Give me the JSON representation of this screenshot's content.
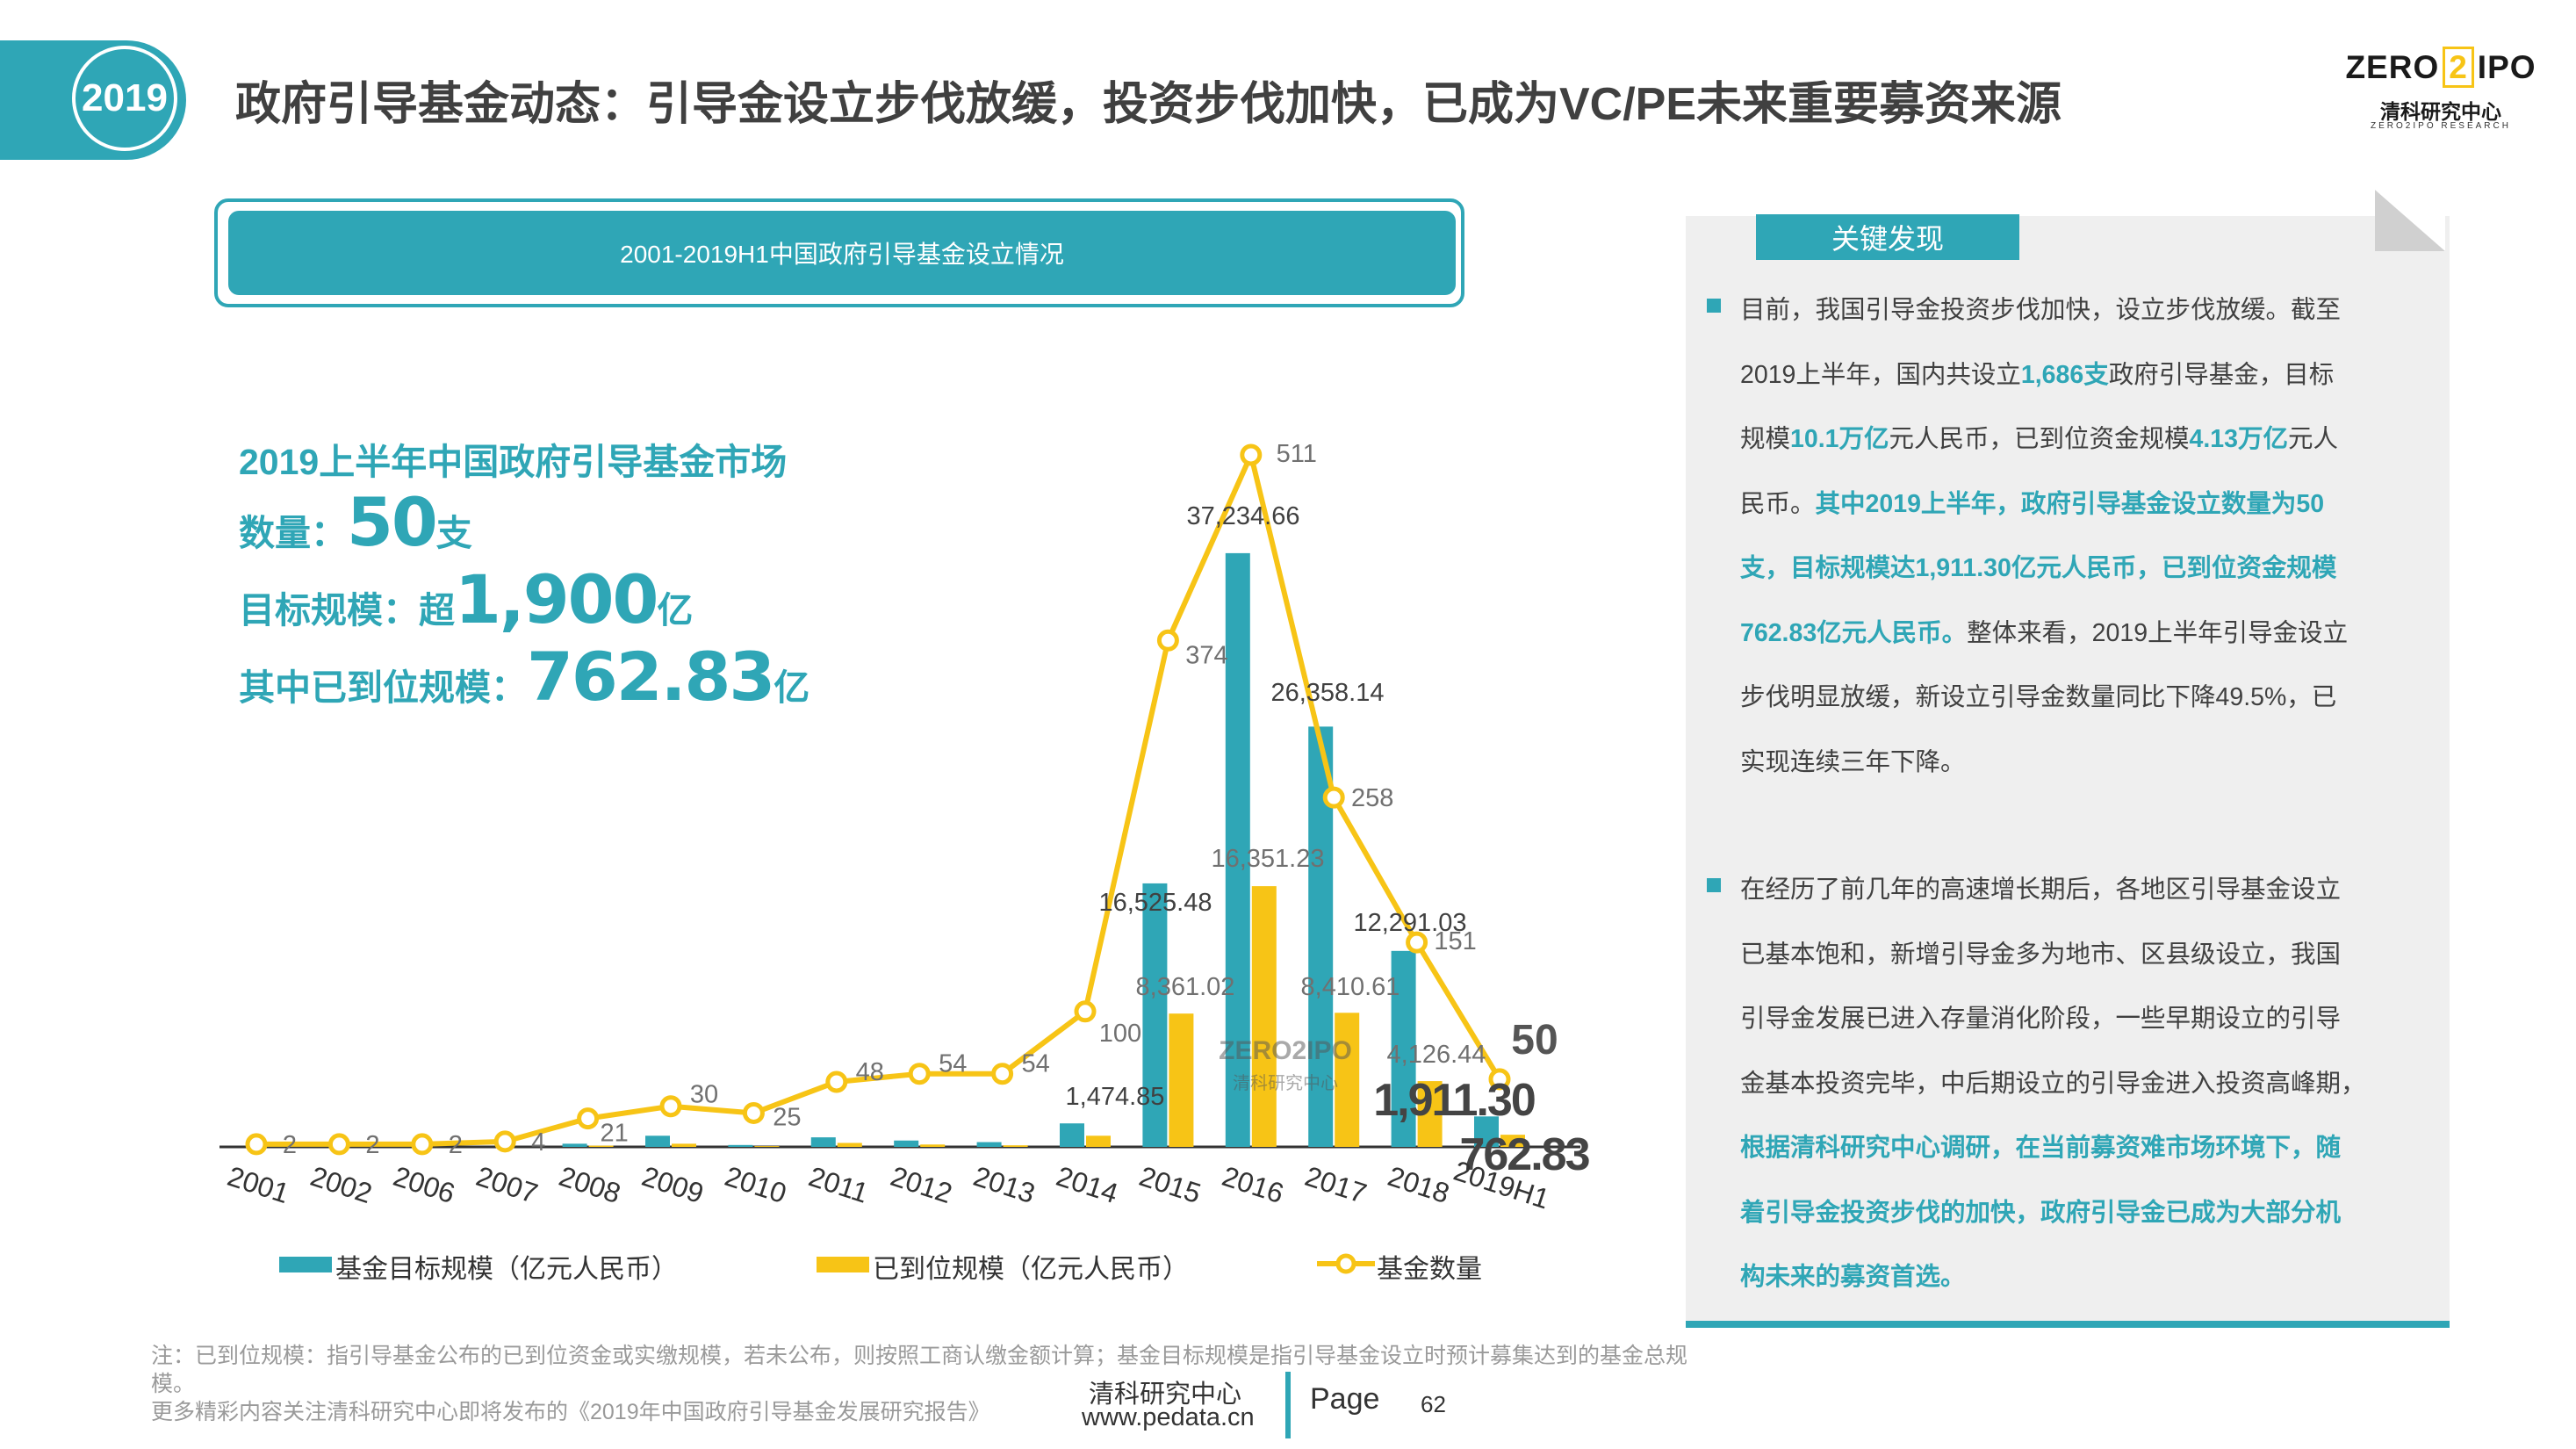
{
  "header": {
    "year": "2019",
    "title": "政府引导基金动态：引导金设立步伐放缓，投资步伐加快，已成为VC/PE未来重要募资来源",
    "logo_top_left": "ZERO",
    "logo_top_mid": "2",
    "logo_top_right": "IPO",
    "logo_cn": "清科研究中心",
    "logo_en": "ZERO2IPO RESEARCH"
  },
  "chart_box_title": "2001-2019H1中国政府引导基金设立情况",
  "summary": {
    "heading": "2019上半年中国政府引导基金市场",
    "count_label": "数量：",
    "count_value": "50",
    "count_unit": "支",
    "target_label": "目标规模：超",
    "target_value": "1,900",
    "target_unit": "亿",
    "paid_label": "其中已到位规模：",
    "paid_value": "762.83",
    "paid_unit": "亿"
  },
  "chart_data": {
    "type": "bar",
    "categories": [
      "2001",
      "2002",
      "2006",
      "2007",
      "2008",
      "2009",
      "2010",
      "2011",
      "2012",
      "2013",
      "2014",
      "2015",
      "2016",
      "2017",
      "2018",
      "2019H1"
    ],
    "series": [
      {
        "name": "基金目标规模（亿元人民币）",
        "type": "bar",
        "color": "#2fa6b6",
        "values": [
          0,
          0,
          0,
          0,
          200,
          700,
          120,
          600,
          400,
          300,
          1474.85,
          16525.48,
          37234.66,
          26358.14,
          12291.03,
          1911.3
        ],
        "labels": [
          "",
          "",
          "",
          "",
          "",
          "",
          "",
          "",
          "",
          "",
          "1,474.85",
          "16,525.48",
          "37,234.66",
          "26,358.14",
          "12,291.03",
          "1,911.30"
        ]
      },
      {
        "name": "已到位规模（亿元人民币）",
        "type": "bar",
        "color": "#f7c416",
        "values": [
          0,
          0,
          0,
          0,
          80,
          200,
          50,
          250,
          150,
          100,
          700,
          8361.02,
          16351.23,
          8410.61,
          4126.44,
          762.83
        ],
        "labels": [
          "",
          "",
          "",
          "",
          "",
          "",
          "",
          "",
          "",
          "",
          "",
          "8,361.02",
          "16,351.23",
          "8,410.61",
          "4,126.44",
          "762.83"
        ]
      },
      {
        "name": "基金数量",
        "type": "line",
        "color": "#f7c416",
        "axis": "secondary",
        "values": [
          2,
          2,
          2,
          4,
          21,
          30,
          25,
          48,
          54,
          54,
          100,
          374,
          511,
          258,
          151,
          50
        ]
      }
    ],
    "ylim": [
      0,
      38000
    ],
    "y2lim": [
      0,
      511
    ],
    "grid": false,
    "legend": "bottom"
  },
  "panel": {
    "title": "关键发现",
    "p1": [
      [
        {
          "t": "目前，我国引导金投资步伐加快，设立步伐放缓。截至"
        }
      ],
      [
        {
          "t": "2019上半年，国内共设立"
        },
        {
          "t": "1,686支",
          "h": 1
        },
        {
          "t": "政府引导基金，目标"
        }
      ],
      [
        {
          "t": "规模"
        },
        {
          "t": "10.1万亿",
          "h": 1
        },
        {
          "t": "元人民币，已到位资金规模"
        },
        {
          "t": "4.13万亿",
          "h": 1
        },
        {
          "t": "元人"
        }
      ],
      [
        {
          "t": "民币。"
        },
        {
          "t": "其中2019上半年，政府引导基金设立数量为50",
          "h": 1
        }
      ],
      [
        {
          "t": "支，目标规模达1,911.30亿元人民币，已到位资金规模",
          "h": 1
        }
      ],
      [
        {
          "t": "762.83亿元人民币。",
          "h": 1
        },
        {
          "t": "整体来看，2019上半年引导金设立"
        }
      ],
      [
        {
          "t": "步伐明显放缓，新设立引导金数量同比下降49.5%，已"
        }
      ],
      [
        {
          "t": "实现连续三年下降。"
        }
      ]
    ],
    "p2": [
      [
        {
          "t": "在经历了前几年的高速增长期后，各地区引导基金设立"
        }
      ],
      [
        {
          "t": "已基本饱和，新增引导金多为地市、区县级设立，我国"
        }
      ],
      [
        {
          "t": "引导金发展已进入存量消化阶段，一些早期设立的引导"
        }
      ],
      [
        {
          "t": "金基本投资完毕，中后期设立的引导金进入投资高峰期，"
        }
      ],
      [
        {
          "t": "根据清科研究中心调研，在当前募资难市场环境下，随",
          "h": 1
        }
      ],
      [
        {
          "t": "着引导金投资步伐的加快，政府引导金已成为大部分机",
          "h": 1
        }
      ],
      [
        {
          "t": "构未来的募资首选。",
          "h": 1
        }
      ]
    ]
  },
  "footer": {
    "note1": "注：已到位规模：指引导基金公布的已到位资金或实缴规模，若未公布，则按照工商认缴金额计算；基金目标规模是指引导基金设立时预计募集达到的基金总规",
    "note2": "模。",
    "note3": "更多精彩内容关注清科研究中心即将发布的《2019年中国政府引导基金发展研究报告》",
    "center_cn": "清科研究中心",
    "site": "www.pedata.cn",
    "page_label": "Page",
    "page_num": "62"
  },
  "colors": {
    "accent": "#2fa6b6",
    "yellow": "#f7c416",
    "text": "#404040"
  }
}
